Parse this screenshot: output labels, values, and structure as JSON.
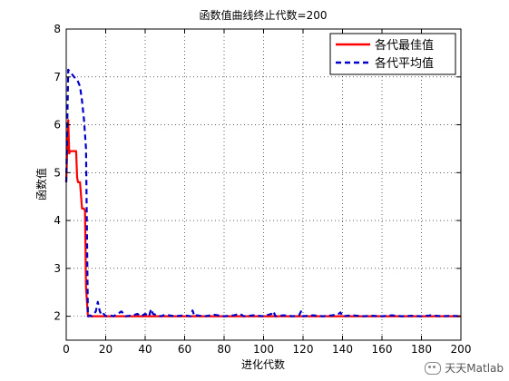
{
  "chart_data": {
    "type": "line",
    "title": "函数值曲线终止代数=200",
    "xlabel": "进化代数",
    "ylabel": "函数值",
    "xlim": [
      0,
      200
    ],
    "ylim": [
      1.5,
      8
    ],
    "xticks": [
      0,
      20,
      40,
      60,
      80,
      100,
      120,
      140,
      160,
      180,
      200
    ],
    "yticks": [
      2,
      3,
      4,
      5,
      6,
      7,
      8
    ],
    "grid": true,
    "legend_position": "top-right",
    "series": [
      {
        "name": "各代最佳值",
        "color": "#ff0000",
        "style": "solid",
        "x": [
          0,
          1,
          1.5,
          2,
          3,
          4,
          5,
          5.5,
          6,
          7,
          8,
          9,
          9.5,
          10,
          11,
          200
        ],
        "y": [
          4.8,
          6.1,
          5.4,
          5.45,
          5.45,
          5.45,
          5.45,
          4.9,
          4.8,
          4.8,
          4.25,
          4.25,
          4.2,
          2.6,
          2.0,
          2.0
        ]
      },
      {
        "name": "各代平均值",
        "color": "#0000cc",
        "style": "dashed",
        "x": [
          0,
          1,
          2,
          3,
          4,
          5,
          6,
          7,
          8,
          9,
          10,
          11,
          12,
          13,
          14,
          15,
          16,
          17,
          18,
          19,
          20,
          22,
          24,
          26,
          28,
          30,
          34,
          36,
          38,
          40,
          42,
          43,
          44,
          46,
          48,
          50,
          55,
          60,
          63,
          64,
          65,
          66,
          70,
          75,
          80,
          85,
          88,
          90,
          95,
          100,
          104,
          105,
          106,
          110,
          115,
          118,
          119,
          120,
          125,
          130,
          135,
          138,
          139,
          140,
          145,
          150,
          155,
          160,
          165,
          170,
          175,
          180,
          185,
          190,
          195,
          200
        ],
        "y": [
          4.8,
          7.15,
          7.1,
          7.05,
          7.0,
          6.95,
          6.9,
          6.8,
          6.5,
          6.1,
          5.5,
          2.0,
          2.02,
          2.0,
          2.05,
          2.1,
          2.3,
          2.1,
          2.02,
          2.05,
          2.0,
          2.02,
          2.0,
          2.05,
          2.1,
          2.0,
          2.02,
          2.05,
          2.0,
          2.05,
          2.0,
          2.15,
          2.05,
          2.02,
          2.0,
          2.03,
          2.0,
          2.02,
          2.0,
          2.12,
          2.0,
          2.02,
          2.0,
          2.03,
          2.0,
          2.02,
          2.05,
          2.0,
          2.02,
          2.0,
          2.05,
          2.1,
          2.0,
          2.02,
          2.0,
          2.02,
          2.1,
          2.0,
          2.02,
          2.0,
          2.02,
          2.05,
          2.08,
          2.0,
          2.02,
          2.0,
          2.01,
          2.0,
          2.02,
          2.0,
          2.01,
          2.0,
          2.02,
          2.0,
          2.01,
          2.0
        ]
      }
    ]
  },
  "watermark": {
    "text": "天天Matlab",
    "icon": "wechat-icon"
  }
}
